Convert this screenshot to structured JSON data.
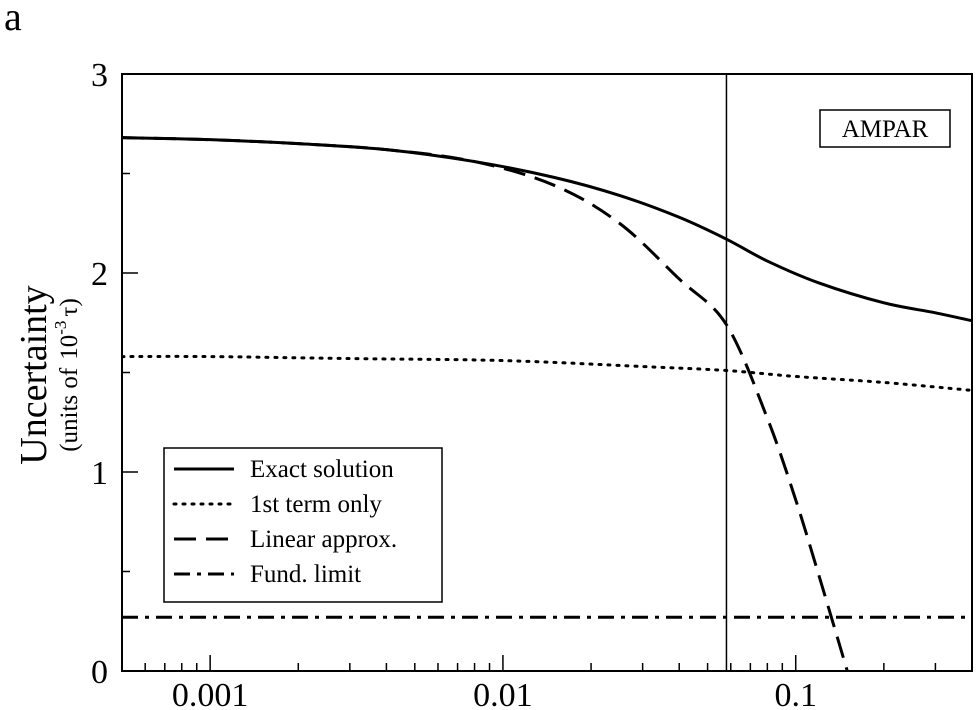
{
  "panel_label": "a",
  "chart_data": {
    "type": "line",
    "xscale": "log",
    "xlim": [
      0.0005,
      0.4
    ],
    "ylim": [
      0,
      3
    ],
    "ylabel": "Uncertainty",
    "ylabel_units_prefix": "(units of",
    "ylabel_units_power": "-3",
    "ylabel_units_symbol": "τ)",
    "ylabel_units_base": "10",
    "x_ticks": [
      {
        "value": 0.001,
        "label": "0.001"
      },
      {
        "value": 0.01,
        "label": "0.01"
      },
      {
        "value": 0.1,
        "label": "0.1"
      }
    ],
    "y_ticks": [
      {
        "value": 0,
        "label": "0"
      },
      {
        "value": 1,
        "label": "1"
      },
      {
        "value": 2,
        "label": "2"
      },
      {
        "value": 3,
        "label": "3"
      }
    ],
    "y_minor_ticks": [
      0.5,
      1.5,
      2.5
    ],
    "annotation_box": "AMPAR",
    "reference_line_x": 0.058,
    "legend_position": "lower-left",
    "series": [
      {
        "name": "Exact solution",
        "style": "solid",
        "x": [
          0.0005,
          0.001,
          0.002,
          0.004,
          0.008,
          0.015,
          0.025,
          0.04,
          0.058,
          0.08,
          0.12,
          0.2,
          0.3,
          0.4
        ],
        "y": [
          2.68,
          2.67,
          2.65,
          2.62,
          2.56,
          2.48,
          2.39,
          2.28,
          2.17,
          2.06,
          1.95,
          1.85,
          1.8,
          1.76
        ]
      },
      {
        "name": "1st term only",
        "style": "dotted",
        "x": [
          0.0005,
          0.001,
          0.003,
          0.01,
          0.03,
          0.058,
          0.1,
          0.2,
          0.4
        ],
        "y": [
          1.58,
          1.58,
          1.57,
          1.56,
          1.53,
          1.51,
          1.48,
          1.45,
          1.41
        ]
      },
      {
        "name": "Linear approx.",
        "style": "dashed",
        "x": [
          0.0005,
          0.001,
          0.002,
          0.004,
          0.008,
          0.015,
          0.025,
          0.04,
          0.058,
          0.08,
          0.1,
          0.12,
          0.15
        ],
        "y": [
          2.68,
          2.67,
          2.65,
          2.62,
          2.56,
          2.44,
          2.25,
          1.97,
          1.74,
          1.27,
          0.86,
          0.48,
          0.0
        ]
      },
      {
        "name": "Fund. limit",
        "style": "dashdot",
        "x": [
          0.0005,
          0.4
        ],
        "y": [
          0.27,
          0.27
        ]
      }
    ]
  }
}
